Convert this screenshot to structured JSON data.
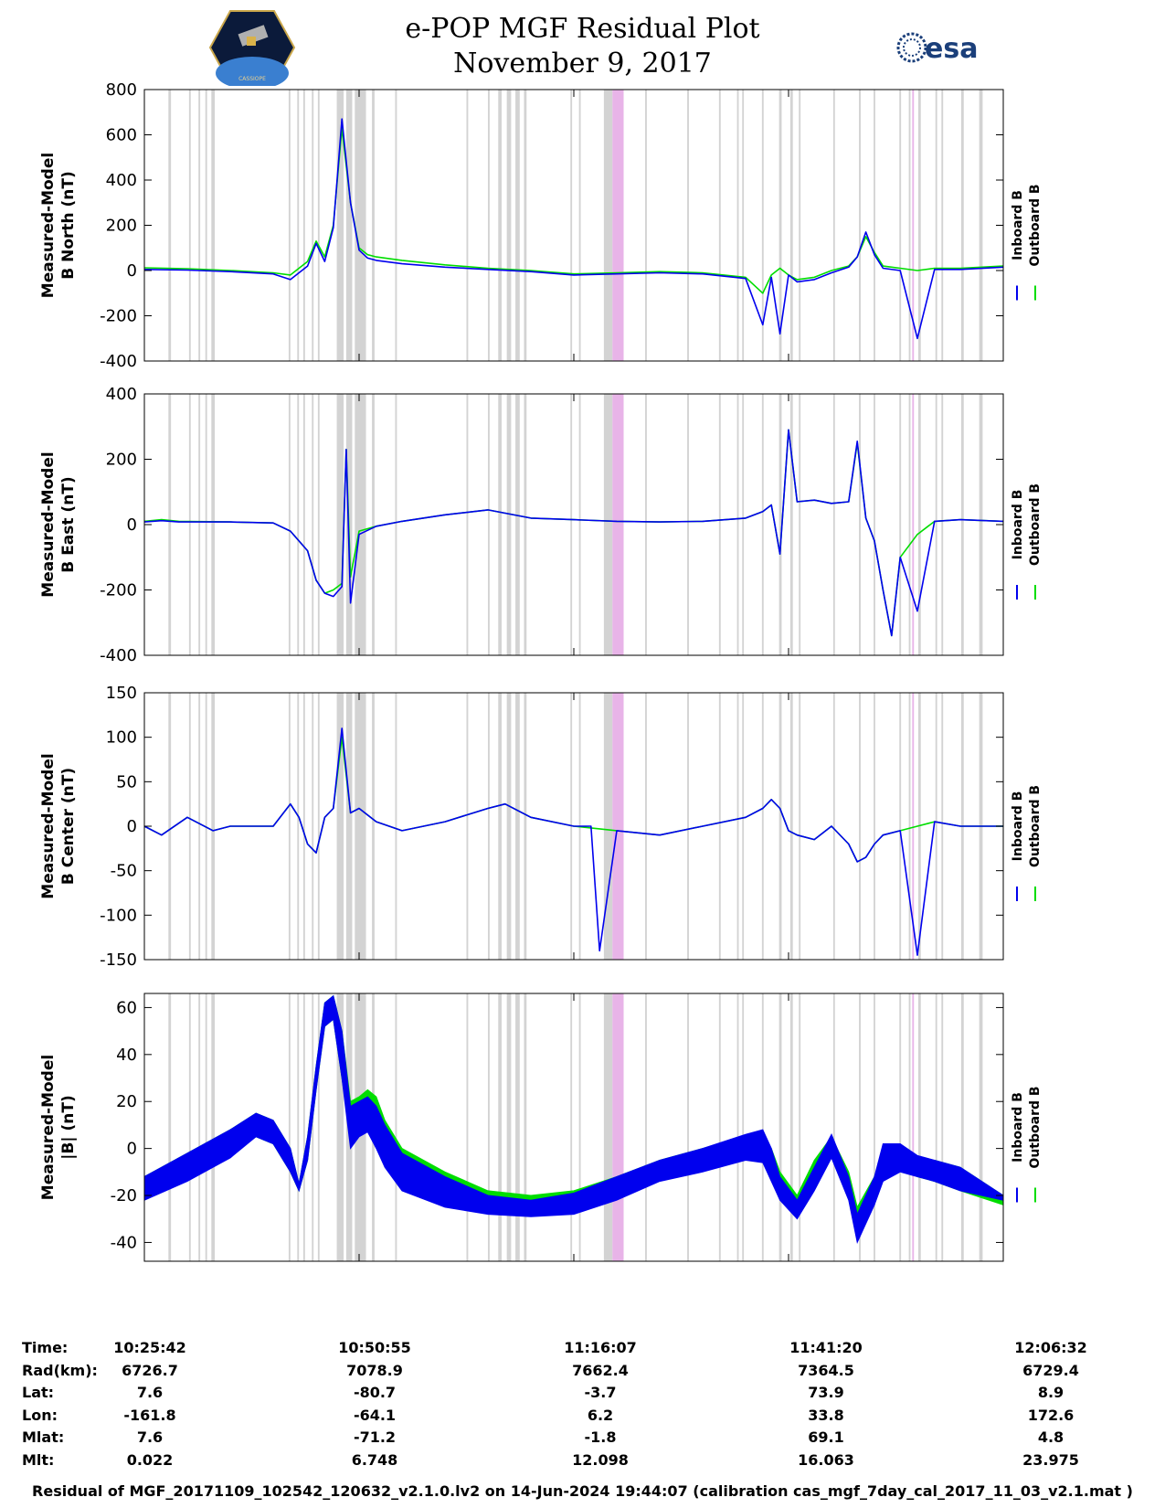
{
  "header": {
    "title": "e-POP MGF Residual Plot",
    "date": "November 9, 2017",
    "logo_left_text": "CASSIOPE",
    "logo_right_text": "esa"
  },
  "colors": {
    "inboard": "#0000ee",
    "outboard": "#00dd00",
    "gray_band": "#d3d3d3",
    "pink_band": "#e8b4e8"
  },
  "legend": {
    "inboard": "Inboard B",
    "outboard": "Outboard B"
  },
  "chart_data": [
    {
      "type": "line",
      "ylabel": [
        "Measured-Model",
        "B North (nT)"
      ],
      "ylim": [
        -400,
        800
      ],
      "yticks": [
        -400,
        -200,
        0,
        200,
        400,
        600,
        800
      ],
      "xlim": [
        0,
        100
      ],
      "xticks": [
        0,
        25,
        50,
        75,
        100
      ],
      "series": [
        {
          "name": "Outboard B",
          "x": [
            0,
            5,
            10,
            15,
            17,
            19,
            20,
            21,
            22,
            23,
            24,
            25,
            26,
            27,
            30,
            35,
            40,
            45,
            50,
            55,
            60,
            65,
            70,
            72,
            73,
            74,
            75,
            76,
            78,
            80,
            82,
            83,
            84,
            85,
            86,
            88,
            90,
            92,
            95,
            100
          ],
          "y": [
            12,
            8,
            0,
            -10,
            -20,
            40,
            130,
            60,
            200,
            630,
            300,
            100,
            70,
            60,
            45,
            25,
            10,
            0,
            -15,
            -10,
            -5,
            -10,
            -30,
            -100,
            -20,
            10,
            -20,
            -40,
            -30,
            0,
            20,
            60,
            150,
            80,
            20,
            10,
            0,
            10,
            10,
            20
          ]
        },
        {
          "name": "Inboard B",
          "x": [
            0,
            5,
            10,
            15,
            17,
            19,
            20,
            21,
            22,
            23,
            24,
            25,
            26,
            27,
            30,
            35,
            40,
            45,
            50,
            55,
            60,
            65,
            70,
            72,
            73,
            74,
            75,
            76,
            78,
            80,
            82,
            83,
            84,
            85,
            86,
            88,
            90,
            92,
            95,
            100
          ],
          "y": [
            5,
            2,
            -5,
            -15,
            -40,
            20,
            120,
            40,
            190,
            670,
            300,
            90,
            55,
            45,
            30,
            15,
            5,
            -5,
            -20,
            -15,
            -10,
            -15,
            -35,
            -240,
            -30,
            -280,
            -20,
            -50,
            -40,
            -10,
            15,
            60,
            170,
            70,
            10,
            0,
            -300,
            5,
            5,
            15
          ]
        }
      ]
    },
    {
      "type": "line",
      "ylabel": [
        "Measured-Model",
        "B East (nT)"
      ],
      "ylim": [
        -400,
        400
      ],
      "yticks": [
        -400,
        -200,
        0,
        200,
        400
      ],
      "xlim": [
        0,
        100
      ],
      "xticks": [
        0,
        25,
        50,
        75,
        100
      ],
      "series": [
        {
          "name": "Outboard B",
          "x": [
            0,
            2,
            4,
            10,
            15,
            17,
            19,
            20,
            21,
            22,
            23,
            23.5,
            24,
            25,
            27,
            30,
            35,
            40,
            45,
            50,
            55,
            60,
            65,
            70,
            72,
            73,
            74,
            75,
            76,
            78,
            80,
            82,
            83,
            84,
            85,
            86,
            87,
            88,
            90,
            92,
            95,
            100
          ],
          "y": [
            10,
            15,
            10,
            8,
            5,
            -20,
            -80,
            -170,
            -210,
            -200,
            -180,
            230,
            -160,
            -20,
            -5,
            10,
            30,
            45,
            20,
            15,
            10,
            8,
            10,
            20,
            40,
            60,
            -90,
            290,
            70,
            75,
            65,
            70,
            250,
            20,
            -50,
            -200,
            -340,
            -100,
            -30,
            10,
            15,
            10
          ]
        },
        {
          "name": "Inboard B",
          "x": [
            0,
            2,
            4,
            10,
            15,
            17,
            19,
            20,
            21,
            22,
            23,
            23.5,
            24,
            25,
            27,
            30,
            35,
            40,
            45,
            50,
            55,
            60,
            65,
            70,
            72,
            73,
            74,
            75,
            76,
            78,
            80,
            82,
            83,
            84,
            85,
            86,
            87,
            88,
            90,
            92,
            95,
            100
          ],
          "y": [
            8,
            12,
            8,
            8,
            5,
            -20,
            -80,
            -170,
            -210,
            -220,
            -190,
            230,
            -240,
            -30,
            -5,
            10,
            30,
            45,
            20,
            15,
            10,
            8,
            10,
            20,
            40,
            60,
            -90,
            290,
            70,
            75,
            65,
            70,
            255,
            20,
            -50,
            -200,
            -340,
            -100,
            -265,
            10,
            15,
            10
          ]
        }
      ]
    },
    {
      "type": "line",
      "ylabel": [
        "Measured-Model",
        "B Center (nT)"
      ],
      "ylim": [
        -150,
        150
      ],
      "yticks": [
        -150,
        -100,
        -50,
        0,
        50,
        100,
        150
      ],
      "xlim": [
        0,
        100
      ],
      "xticks": [
        0,
        25,
        50,
        75,
        100
      ],
      "series": [
        {
          "name": "Outboard B",
          "x": [
            0,
            2,
            5,
            8,
            10,
            15,
            17,
            18,
            19,
            20,
            21,
            22,
            23,
            24,
            25,
            27,
            30,
            35,
            40,
            42,
            45,
            50,
            55,
            60,
            65,
            70,
            72,
            73,
            74,
            75,
            76,
            78,
            80,
            82,
            83,
            84,
            85,
            86,
            88,
            90,
            92,
            95,
            100
          ],
          "y": [
            0,
            -10,
            10,
            -5,
            0,
            0,
            25,
            10,
            -20,
            -30,
            10,
            20,
            100,
            15,
            20,
            5,
            -5,
            5,
            20,
            25,
            10,
            0,
            -5,
            -10,
            0,
            10,
            20,
            30,
            20,
            -5,
            -10,
            -15,
            0,
            -20,
            -40,
            -35,
            -20,
            -10,
            -5,
            0,
            5,
            0,
            0
          ]
        },
        {
          "name": "Inboard B",
          "x": [
            0,
            2,
            5,
            8,
            10,
            15,
            17,
            18,
            19,
            20,
            21,
            22,
            23,
            24,
            25,
            27,
            30,
            35,
            40,
            42,
            45,
            50,
            52,
            53,
            55,
            60,
            65,
            70,
            72,
            73,
            74,
            75,
            76,
            78,
            80,
            82,
            83,
            84,
            85,
            86,
            88,
            90,
            92,
            95,
            100
          ],
          "y": [
            0,
            -10,
            10,
            -5,
            0,
            0,
            25,
            10,
            -20,
            -30,
            10,
            20,
            110,
            15,
            20,
            5,
            -5,
            5,
            20,
            25,
            10,
            0,
            0,
            -140,
            -5,
            -10,
            0,
            10,
            20,
            30,
            20,
            -5,
            -10,
            -15,
            0,
            -20,
            -40,
            -35,
            -20,
            -10,
            -5,
            -145,
            5,
            0,
            0
          ]
        }
      ]
    },
    {
      "type": "area",
      "ylabel": [
        "Measured-Model",
        "|B| (nT)"
      ],
      "ylim": [
        -48,
        66
      ],
      "yticks": [
        -40,
        -20,
        0,
        20,
        40,
        60
      ],
      "xlim": [
        0,
        100
      ],
      "xticks": [
        0,
        25,
        50,
        75,
        100
      ],
      "series": [
        {
          "name": "Outboard B",
          "x": [
            0,
            5,
            10,
            13,
            15,
            17,
            18,
            19,
            20,
            21,
            22,
            23,
            24,
            25,
            26,
            27,
            28,
            30,
            35,
            40,
            45,
            50,
            55,
            60,
            65,
            70,
            72,
            73,
            74,
            76,
            78,
            80,
            82,
            83,
            85,
            86,
            88,
            90,
            92,
            95,
            100
          ],
          "upper": [
            -12,
            -2,
            8,
            15,
            12,
            0,
            -15,
            5,
            35,
            62,
            65,
            50,
            20,
            22,
            25,
            22,
            12,
            0,
            -10,
            -18,
            -20,
            -18,
            -12,
            -5,
            0,
            5,
            5,
            0,
            -10,
            -20,
            -5,
            5,
            -10,
            -25,
            -12,
            0,
            0,
            -5,
            -5,
            -8,
            -20
          ],
          "lower": [
            -18,
            -12,
            -2,
            5,
            2,
            -10,
            -18,
            -5,
            25,
            52,
            55,
            30,
            5,
            8,
            10,
            5,
            -5,
            -15,
            -22,
            -26,
            -28,
            -26,
            -20,
            -12,
            -8,
            -3,
            -5,
            -10,
            -20,
            -28,
            -15,
            -2,
            -18,
            -38,
            -22,
            -10,
            -8,
            -12,
            -14,
            -18,
            -24
          ]
        },
        {
          "name": "Inboard B",
          "x": [
            0,
            5,
            10,
            13,
            15,
            17,
            18,
            19,
            20,
            21,
            22,
            23,
            24,
            25,
            26,
            27,
            28,
            30,
            35,
            40,
            45,
            50,
            55,
            60,
            65,
            70,
            72,
            73,
            74,
            76,
            78,
            80,
            82,
            83,
            85,
            86,
            88,
            90,
            92,
            95,
            100
          ],
          "upper": [
            -12,
            -2,
            8,
            15,
            12,
            0,
            -15,
            5,
            35,
            62,
            65,
            50,
            18,
            20,
            22,
            18,
            10,
            -2,
            -12,
            -20,
            -22,
            -19,
            -12,
            -5,
            0,
            6,
            8,
            0,
            -12,
            -22,
            -8,
            6,
            -12,
            -28,
            -12,
            2,
            2,
            -3,
            -5,
            -8,
            -20
          ],
          "lower": [
            -22,
            -14,
            -4,
            5,
            2,
            -10,
            -18,
            -5,
            25,
            52,
            55,
            30,
            0,
            5,
            7,
            0,
            -8,
            -18,
            -25,
            -28,
            -29,
            -28,
            -22,
            -14,
            -10,
            -5,
            -6,
            -14,
            -22,
            -30,
            -18,
            -4,
            -22,
            -40,
            -24,
            -14,
            -10,
            -12,
            -14,
            -18,
            -22
          ]
        }
      ]
    }
  ],
  "bands": {
    "gray": [
      [
        2.8,
        3.1
      ],
      [
        5.2,
        5.4
      ],
      [
        6.3,
        6.5
      ],
      [
        7.1,
        7.3
      ],
      [
        7.8,
        8.2
      ],
      [
        16.8,
        17.0
      ],
      [
        17.8,
        18.0
      ],
      [
        18.5,
        18.7
      ],
      [
        19.5,
        19.7
      ],
      [
        20.2,
        20.4
      ],
      [
        22.4,
        23.2
      ],
      [
        23.5,
        24.2
      ],
      [
        24.5,
        25.8
      ],
      [
        26.5,
        26.8
      ],
      [
        29.2,
        29.4
      ],
      [
        37.5,
        37.7
      ],
      [
        40.0,
        40.2
      ],
      [
        41.2,
        41.6
      ],
      [
        42.2,
        42.7
      ],
      [
        43.2,
        43.7
      ],
      [
        44.2,
        44.5
      ],
      [
        49.6,
        49.8
      ],
      [
        50.6,
        50.8
      ],
      [
        53.5,
        54.5
      ],
      [
        58.3,
        58.5
      ],
      [
        63.2,
        63.4
      ],
      [
        66.9,
        67.1
      ],
      [
        69.0,
        69.2
      ],
      [
        69.6,
        69.8
      ],
      [
        71.9,
        72.1
      ],
      [
        73.9,
        74.2
      ],
      [
        75.2,
        75.5
      ],
      [
        76.2,
        76.4
      ],
      [
        80.2,
        80.4
      ],
      [
        83.2,
        83.4
      ],
      [
        84.9,
        85.1
      ],
      [
        87.9,
        88.1
      ],
      [
        89.0,
        89.2
      ],
      [
        90.1,
        90.4
      ],
      [
        92.1,
        92.3
      ],
      [
        92.8,
        93.0
      ],
      [
        95.1,
        95.4
      ],
      [
        97.2,
        97.6
      ]
    ],
    "pink": [
      [
        54.5,
        55.8
      ],
      [
        89.4,
        89.6
      ]
    ]
  },
  "info": {
    "labels": [
      "Time:",
      "Rad(km):",
      "Lat:",
      "Lon:",
      "Mlat:",
      "Mlt:"
    ],
    "columns": [
      [
        "10:25:42",
        "6726.7",
        "7.6",
        "-161.8",
        "7.6",
        "0.022"
      ],
      [
        "10:50:55",
        "7078.9",
        "-80.7",
        "-64.1",
        "-71.2",
        "6.748"
      ],
      [
        "11:16:07",
        "7662.4",
        "-3.7",
        "6.2",
        "-1.8",
        "12.098"
      ],
      [
        "11:41:20",
        "7364.5",
        "73.9",
        "33.8",
        "69.1",
        "16.063"
      ],
      [
        "12:06:32",
        "6729.4",
        "8.9",
        "172.6",
        "4.8",
        "23.975"
      ]
    ]
  },
  "footer": "Residual of MGF_20171109_102542_120632_v2.1.0.lv2 on 14-Jun-2024 19:44:07 (calibration cas_mgf_7day_cal_2017_11_03_v2.1.mat )"
}
